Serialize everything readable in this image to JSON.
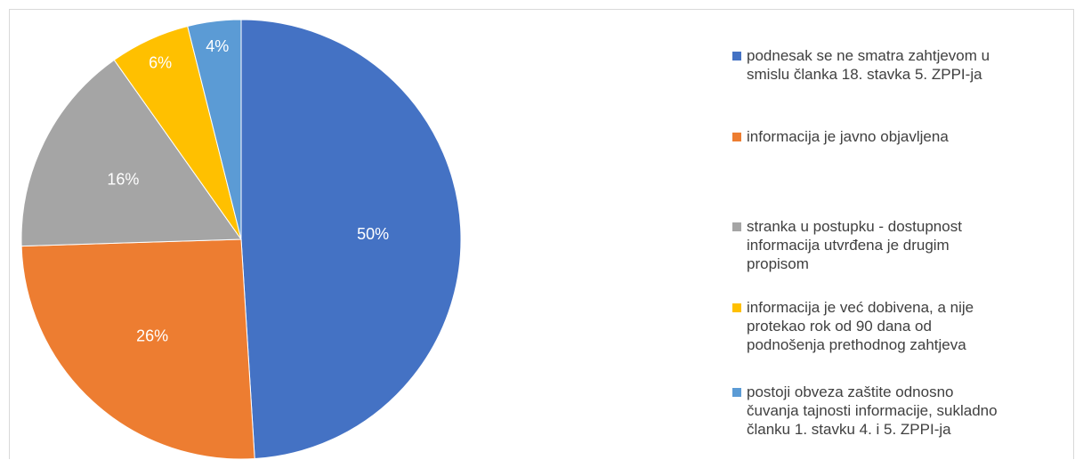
{
  "chart_data": {
    "type": "pie",
    "title": "",
    "slices": [
      {
        "label": "podnesak se ne smatra zahtjevom u smislu članka 18. stavka 5. ZPPI-ja",
        "value": 50,
        "display": "50%",
        "color": "#4472C4"
      },
      {
        "label": "informacija je javno objavljena",
        "value": 26,
        "display": "26%",
        "color": "#ED7D31"
      },
      {
        "label": "stranka u postupku - dostupnost informacija utvrđena je drugim propisom",
        "value": 16,
        "display": "16%",
        "color": "#A5A5A5"
      },
      {
        "label": " informacija je već dobivena, a nije protekao rok od 90 dana od podnošenja prethodnog zahtjeva",
        "value": 6,
        "display": "6%",
        "color": "#FFC000"
      },
      {
        "label": " postoji obveza zaštite odnosno čuvanja tajnosti informacije, sukladno članku 1. stavku 4. i 5. ZPPI-ja",
        "value": 4,
        "display": "4%",
        "color": "#5B9BD5"
      }
    ],
    "legend_position": "right"
  }
}
